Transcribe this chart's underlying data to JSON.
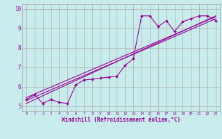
{
  "title": "",
  "xlabel": "Windchill (Refroidissement éolien,°C)",
  "ylabel": "",
  "bg_color": "#c8ecec",
  "line_color": "#990099",
  "grid_color": "#aaaaaa",
  "xlim": [
    -0.5,
    23.5
  ],
  "ylim": [
    4.75,
    10.25
  ],
  "xticks": [
    0,
    1,
    2,
    3,
    4,
    5,
    6,
    7,
    8,
    9,
    10,
    11,
    12,
    13,
    14,
    15,
    16,
    17,
    18,
    19,
    20,
    21,
    22,
    23
  ],
  "yticks": [
    5,
    6,
    7,
    8,
    9,
    10
  ],
  "data_line": [
    [
      0,
      5.35
    ],
    [
      1,
      5.6
    ],
    [
      2,
      5.15
    ],
    [
      3,
      5.35
    ],
    [
      4,
      5.2
    ],
    [
      5,
      5.15
    ],
    [
      6,
      6.1
    ],
    [
      7,
      6.35
    ],
    [
      8,
      6.4
    ],
    [
      9,
      6.45
    ],
    [
      10,
      6.5
    ],
    [
      11,
      6.55
    ],
    [
      12,
      7.1
    ],
    [
      13,
      7.45
    ],
    [
      14,
      9.65
    ],
    [
      15,
      9.65
    ],
    [
      16,
      9.1
    ],
    [
      17,
      9.4
    ],
    [
      18,
      8.85
    ],
    [
      19,
      9.35
    ],
    [
      20,
      9.5
    ],
    [
      21,
      9.65
    ],
    [
      22,
      9.65
    ],
    [
      23,
      9.4
    ]
  ],
  "regression_lines": [
    {
      "x": [
        0,
        23
      ],
      "y": [
        5.3,
        9.5
      ]
    },
    {
      "x": [
        0,
        23
      ],
      "y": [
        5.15,
        9.65
      ]
    },
    {
      "x": [
        0,
        23
      ],
      "y": [
        5.45,
        9.6
      ]
    }
  ]
}
